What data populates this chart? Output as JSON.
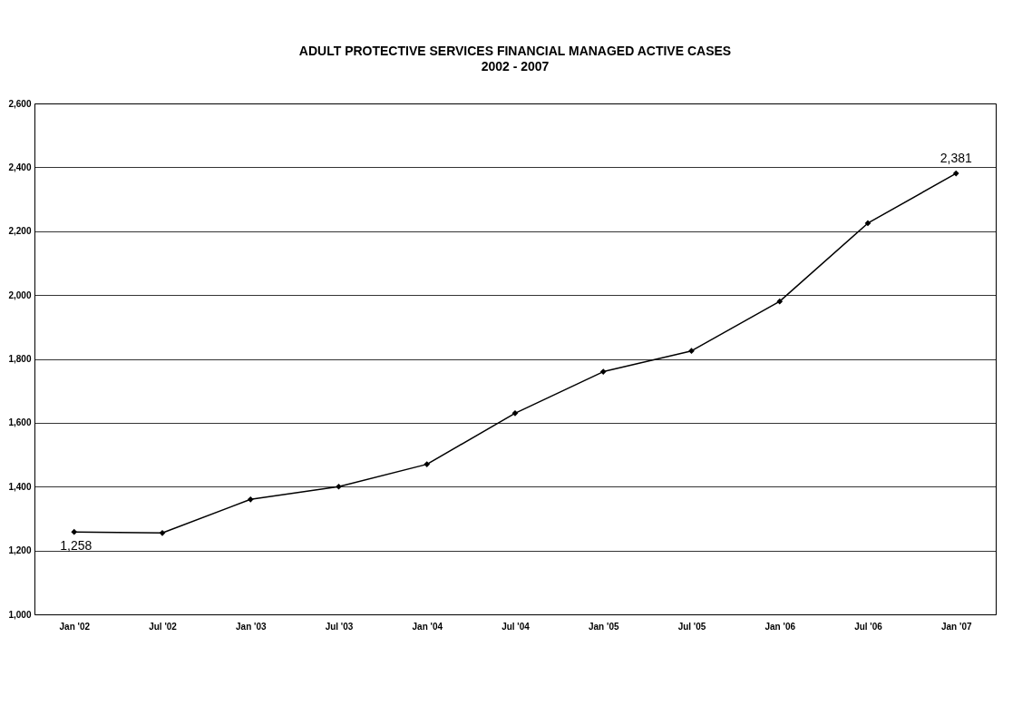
{
  "chart_data": {
    "type": "line",
    "title": "ADULT PROTECTIVE SERVICES FINANCIAL MANAGED ACTIVE CASES",
    "subtitle": "2002 - 2007",
    "categories": [
      "Jan '02",
      "Jul '02",
      "Jan '03",
      "Jul '03",
      "Jan '04",
      "Jul '04",
      "Jan '05",
      "Jul '05",
      "Jan '06",
      "Jul '06",
      "Jan '07"
    ],
    "series": [
      {
        "color": "#000000",
        "values": [
          1258,
          1255,
          1360,
          1400,
          1470,
          1630,
          1760,
          1825,
          1980,
          2225,
          2381
        ],
        "value_labels": [
          "1,258",
          null,
          null,
          null,
          null,
          null,
          null,
          null,
          null,
          null,
          "2,381"
        ]
      }
    ],
    "ylim": [
      1000,
      2600
    ],
    "yticks": [
      {
        "value": 1000,
        "label": "1,000"
      },
      {
        "value": 1200,
        "label": "1,200"
      },
      {
        "value": 1400,
        "label": "1,400"
      },
      {
        "value": 1600,
        "label": "1,600"
      },
      {
        "value": 1800,
        "label": "1,800"
      },
      {
        "value": 2000,
        "label": "2,000"
      },
      {
        "value": 2200,
        "label": "2,200"
      },
      {
        "value": 2400,
        "label": "2,400"
      },
      {
        "value": 2600,
        "label": "2,600"
      }
    ],
    "grid": "y",
    "marker": "diamond",
    "line_style": "solid"
  }
}
